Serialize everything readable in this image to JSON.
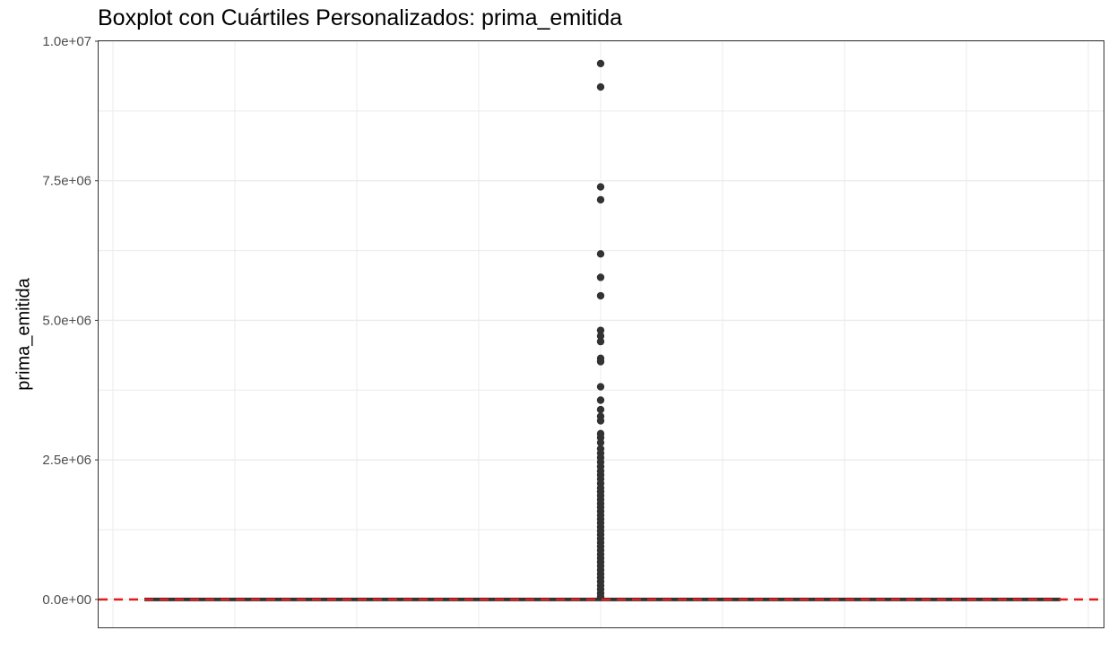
{
  "chart_data": {
    "type": "boxplot",
    "title": "Boxplot con Cuártiles Personalizados:  prima_emitida",
    "ylabel": "prima_emitida",
    "xlabel": "",
    "ylim": [
      -500000,
      10000000
    ],
    "y_ticks": [
      0,
      2500000,
      5000000,
      7500000,
      10000000
    ],
    "y_tick_labels": [
      "0.0e+00",
      "2.5e+06",
      "5.0e+06",
      "7.5e+06",
      "1.0e+07"
    ],
    "grid": true,
    "box": {
      "min": 0,
      "q1": 0,
      "median": 0,
      "q3": 0,
      "max": 0
    },
    "reference_line": {
      "y": 0,
      "style": "dashed",
      "color": "#e41a1c"
    },
    "outliers": [
      9600000,
      9180000,
      7390000,
      7160000,
      6190000,
      5770000,
      5440000,
      4820000,
      4720000,
      4620000,
      4320000,
      4260000,
      3810000,
      3570000,
      3400000,
      3280000,
      3200000,
      2970000,
      2900000,
      2810000,
      2700000,
      2620000,
      2540000,
      2460000,
      2380000,
      2300000,
      2230000,
      2160000,
      2080000,
      2000000,
      1930000,
      1860000,
      1790000,
      1720000,
      1650000,
      1580000,
      1510000,
      1440000,
      1370000,
      1300000,
      1230000,
      1160000,
      1090000,
      1020000,
      950000,
      880000,
      810000,
      740000,
      670000,
      600000,
      530000,
      460000,
      390000,
      320000,
      250000,
      180000,
      110000,
      50000
    ],
    "colors": {
      "points": "#333333",
      "box": "#333333",
      "reference": "#e41a1c",
      "grid": "#ebebeb",
      "panel_border": "#333333"
    }
  }
}
